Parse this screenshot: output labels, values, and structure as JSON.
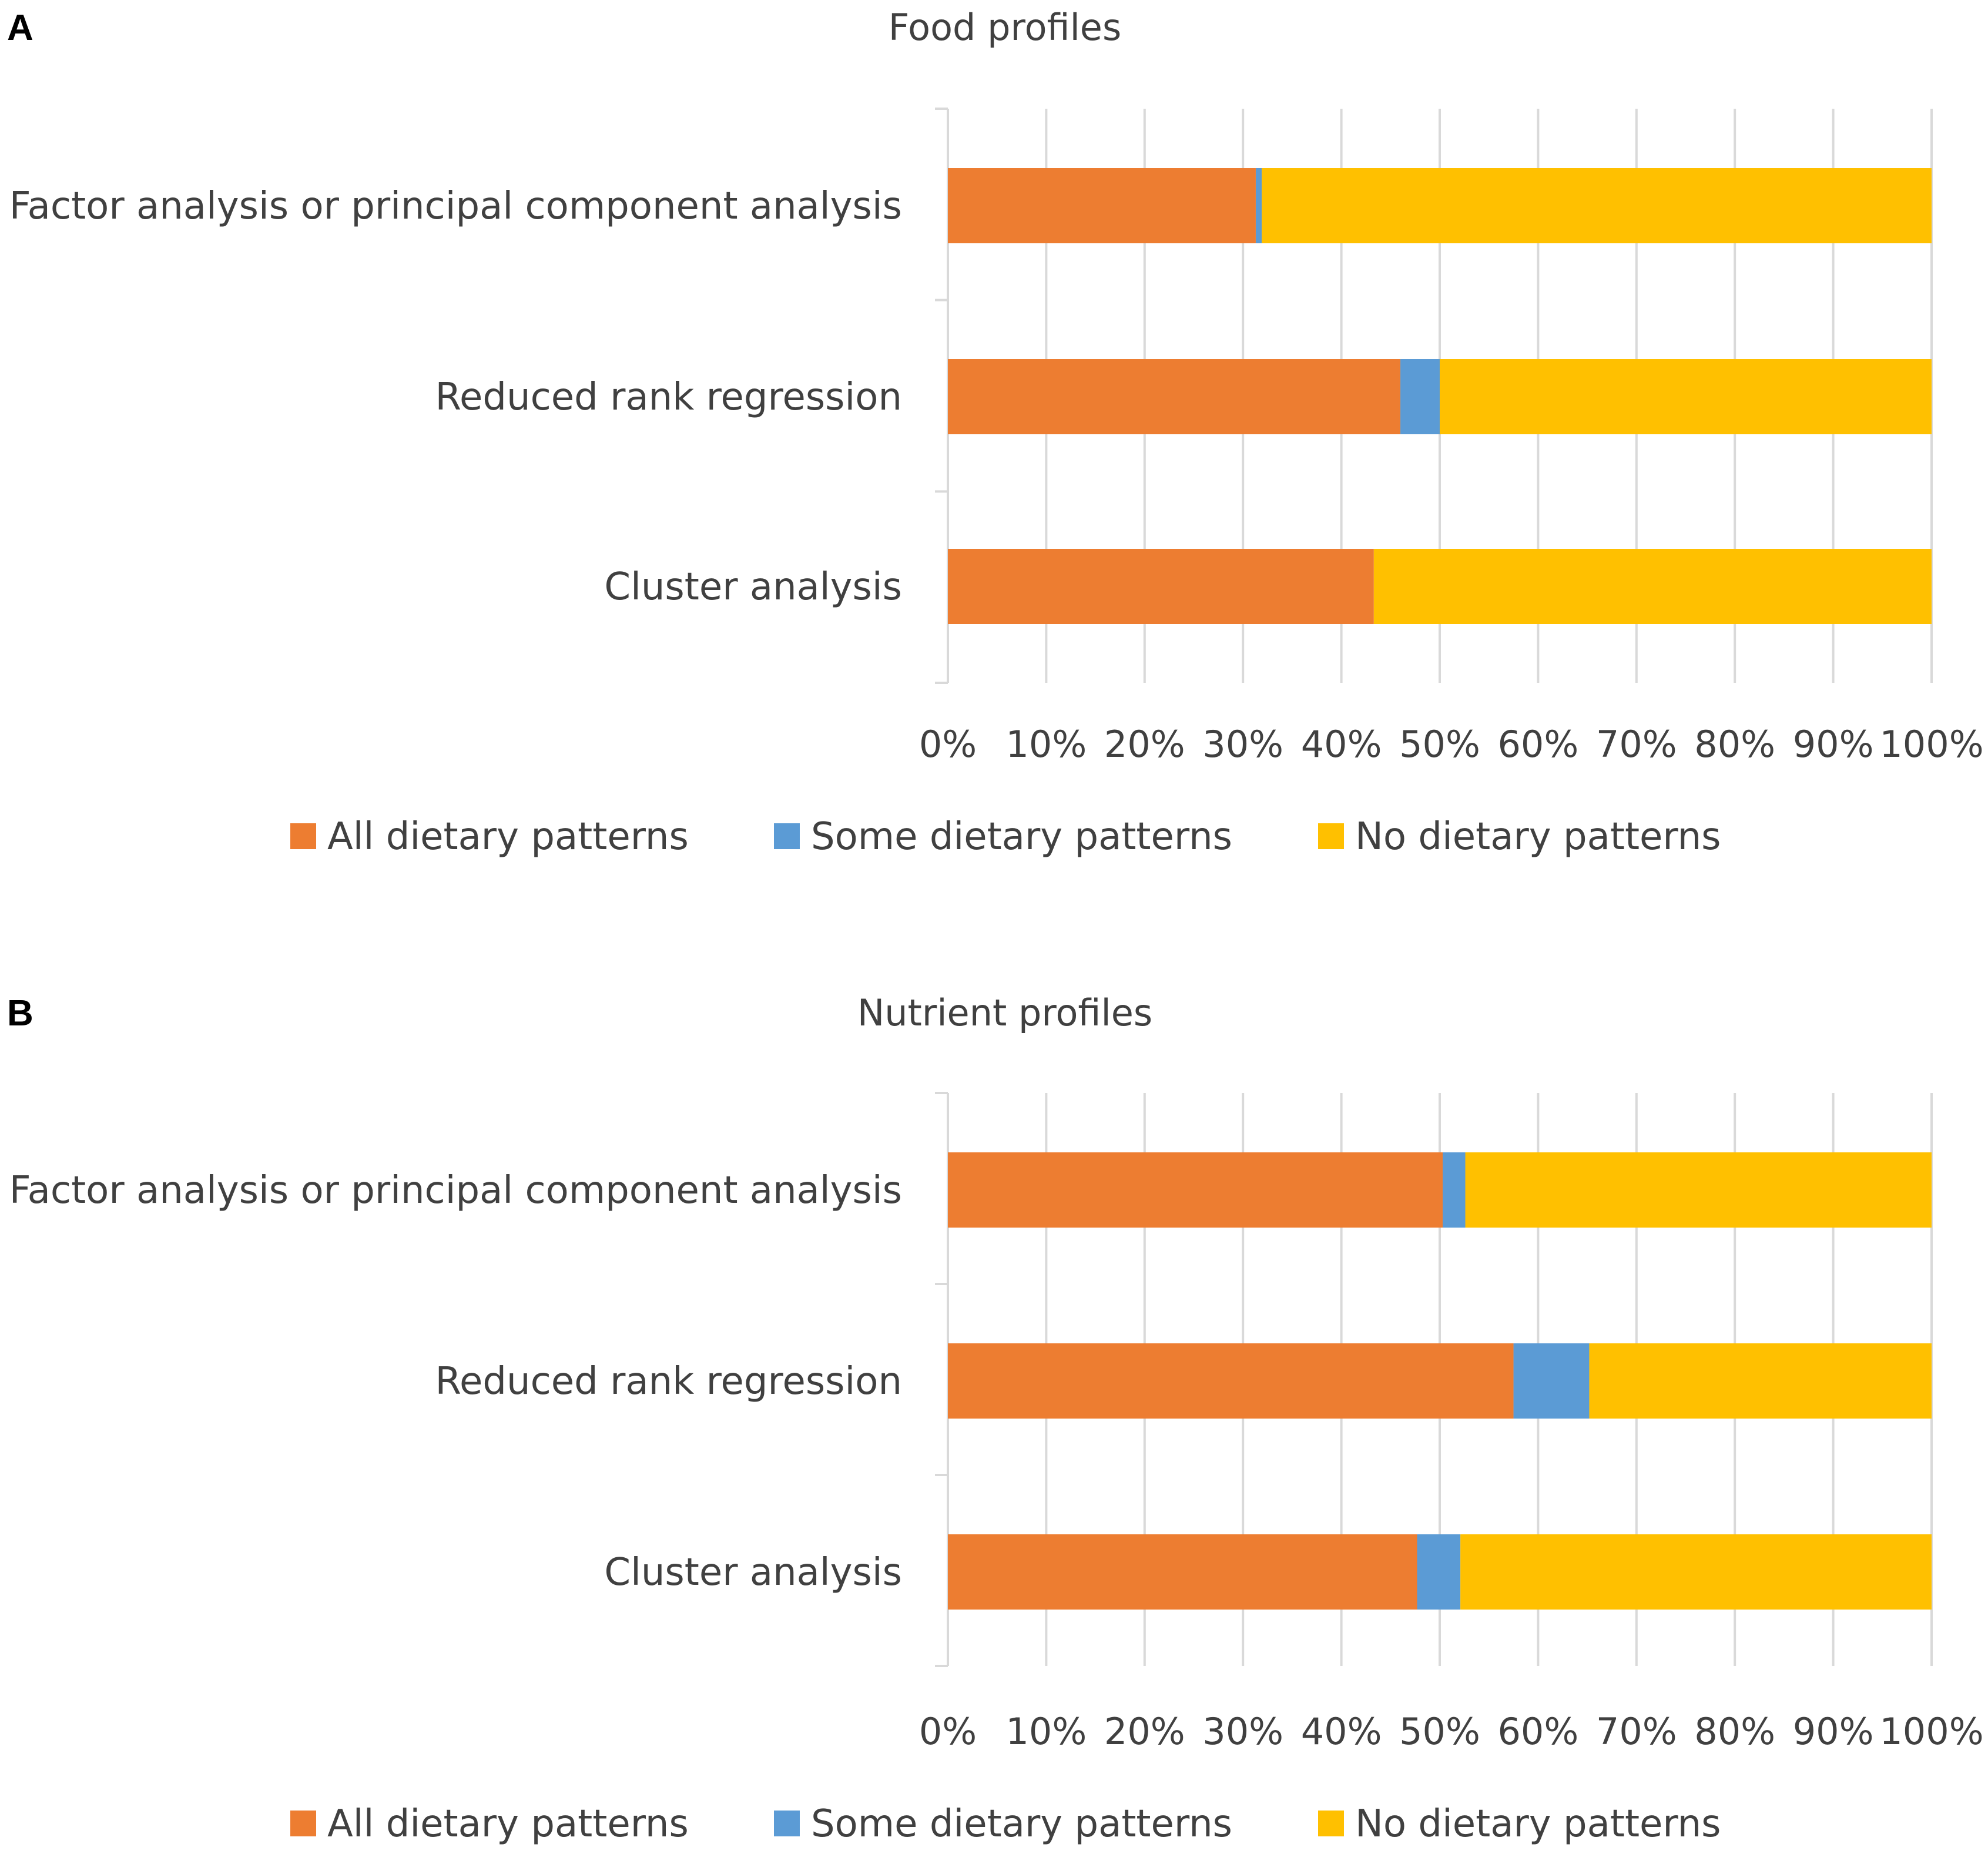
{
  "chart_data": [
    {
      "panel": "A",
      "type": "bar",
      "orientation": "horizontal",
      "stacked": "percent",
      "title": "Food profiles",
      "categories": [
        "Factor analysis or principal component analysis",
        "Reduced rank regression",
        "Cluster analysis"
      ],
      "series": [
        {
          "name": "All dietary patterns",
          "color": "#ED7D31",
          "values": [
            31.3,
            46,
            43.3
          ]
        },
        {
          "name": "Some dietary patterns",
          "color": "#5B9BD5",
          "values": [
            0.6,
            4,
            0
          ]
        },
        {
          "name": "No dietary patterns",
          "color": "#FFC000",
          "values": [
            68.1,
            50,
            56.7
          ]
        }
      ],
      "xlim": [
        0,
        100
      ],
      "xticks": [
        "0%",
        "10%",
        "20%",
        "30%",
        "40%",
        "50%",
        "60%",
        "70%",
        "80%",
        "90%",
        "100%"
      ],
      "grid": true,
      "legend": "bottom"
    },
    {
      "panel": "B",
      "type": "bar",
      "orientation": "horizontal",
      "stacked": "percent",
      "title": "Nutrient profiles",
      "categories": [
        "Factor analysis or principal component analysis",
        "Reduced rank regression",
        "Cluster analysis"
      ],
      "series": [
        {
          "name": "All dietary patterns",
          "color": "#ED7D31",
          "values": [
            50.3,
            57.5,
            47.7
          ]
        },
        {
          "name": "Some dietary patterns",
          "color": "#5B9BD5",
          "values": [
            2.3,
            7.7,
            4.4
          ]
        },
        {
          "name": "No dietary patterns",
          "color": "#FFC000",
          "values": [
            47.4,
            34.8,
            47.9
          ]
        }
      ],
      "xlim": [
        0,
        100
      ],
      "xticks": [
        "0%",
        "10%",
        "20%",
        "30%",
        "40%",
        "50%",
        "60%",
        "70%",
        "80%",
        "90%",
        "100%"
      ],
      "grid": true,
      "legend": "bottom"
    }
  ]
}
